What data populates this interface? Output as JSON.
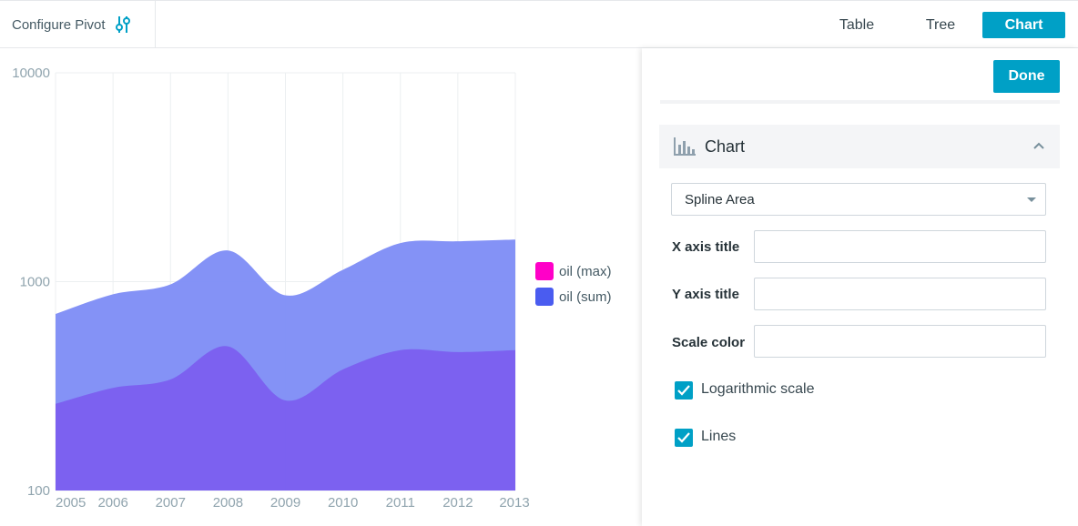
{
  "header": {
    "configure_label": "Configure Pivot",
    "tabs": [
      {
        "label": "Table",
        "active": false
      },
      {
        "label": "Tree",
        "active": false
      },
      {
        "label": "Chart",
        "active": true
      }
    ]
  },
  "colors": {
    "accent": "#00a0c6",
    "series_max": "#7a58ee",
    "series_sum": "#7d8cf5",
    "legend_max": "#ff00c8",
    "legend_sum": "#4a5cf0"
  },
  "chart_data": {
    "type": "area",
    "subtype": "spline-area",
    "x": [
      "2005",
      "2006",
      "2007",
      "2008",
      "2009",
      "2010",
      "2011",
      "2012",
      "2013"
    ],
    "y_scale": "log",
    "ylim": [
      100,
      10000
    ],
    "y_ticks": [
      "100",
      "1000",
      "10000"
    ],
    "grid": true,
    "legend_placement": "right",
    "series": [
      {
        "name": "oil (max)",
        "values": [
          260,
          310,
          340,
          490,
          270,
          380,
          470,
          460,
          470
        ]
      },
      {
        "name": "oil (sum)",
        "values": [
          700,
          870,
          970,
          1410,
          860,
          1140,
          1530,
          1560,
          1590
        ]
      }
    ]
  },
  "panel": {
    "done_label": "Done",
    "section_title": "Chart",
    "chart_type_value": "Spline Area",
    "fields": [
      {
        "label": "X axis title",
        "value": ""
      },
      {
        "label": "Y axis title",
        "value": ""
      },
      {
        "label": "Scale color",
        "value": ""
      }
    ],
    "checkboxes": [
      {
        "label": "Logarithmic scale",
        "checked": true
      },
      {
        "label": "Lines",
        "checked": true
      }
    ]
  }
}
